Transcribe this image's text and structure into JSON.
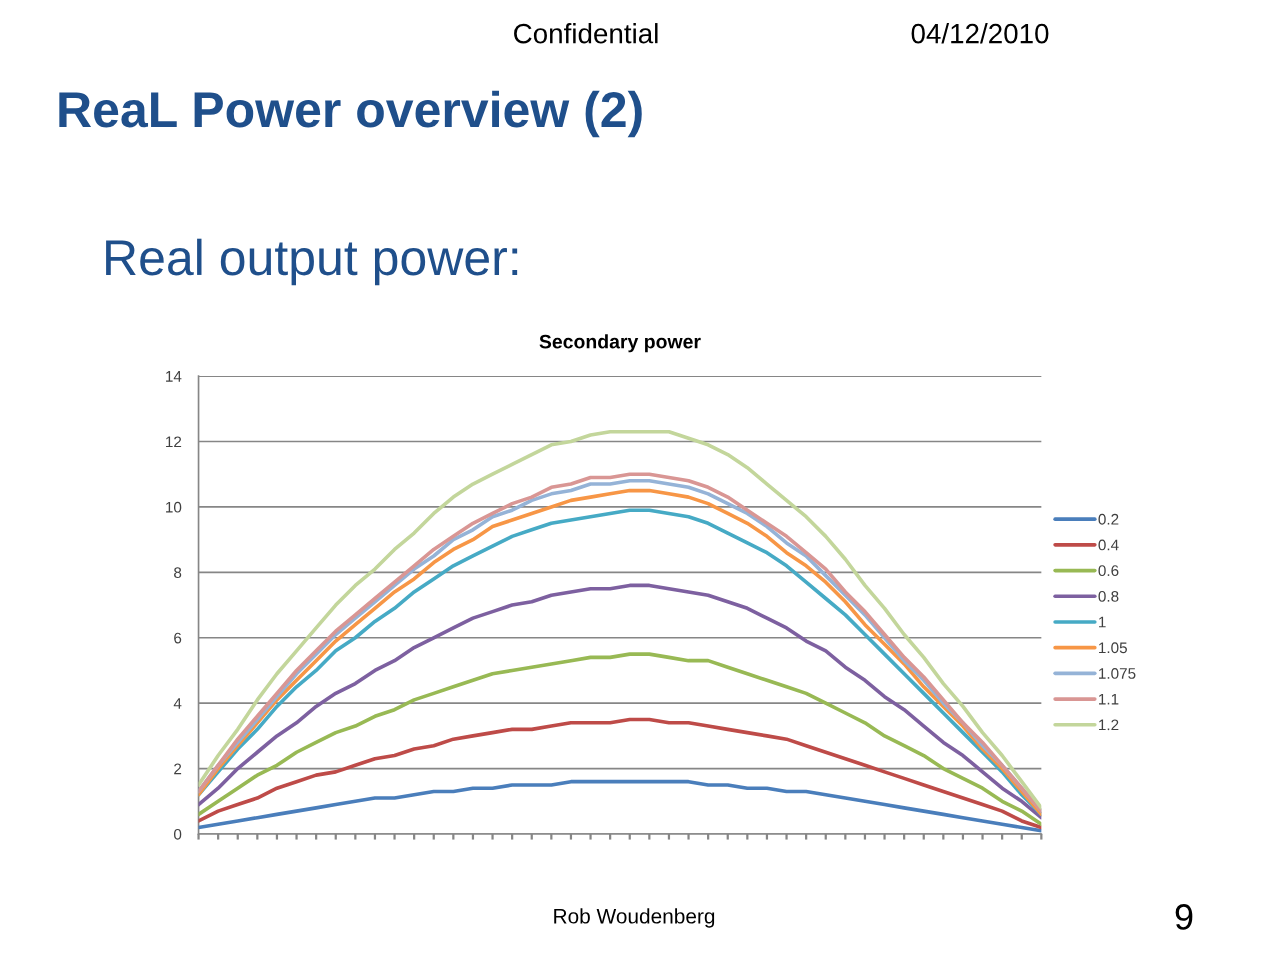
{
  "chart_data": {
    "type": "line",
    "title": "Secondary power",
    "annotations": [
      "Confidential",
      "04/12/2010",
      "ReaL Power overview (2)",
      "Real output power:",
      "Rob Woudenberg",
      "9"
    ],
    "categories": [
      null,
      null,
      null,
      null,
      null,
      null,
      null,
      null,
      null,
      null,
      null,
      null,
      null,
      null,
      null,
      null,
      null,
      null,
      null,
      null,
      null,
      null,
      null,
      null,
      null,
      null,
      null,
      null,
      null,
      null,
      null,
      null,
      null,
      null,
      null,
      null,
      null,
      null,
      null,
      null,
      null,
      null,
      null,
      null
    ],
    "series": [
      {
        "name": "0.2",
        "color": "#4a7ebb",
        "values": [
          0.2,
          0.3,
          0.4,
          0.5,
          0.6,
          0.7,
          0.8,
          0.9,
          1.0,
          1.1,
          1.1,
          1.2,
          1.3,
          1.3,
          1.4,
          1.4,
          1.5,
          1.5,
          1.5,
          1.6,
          1.6,
          1.6,
          1.6,
          1.6,
          1.6,
          1.6,
          1.5,
          1.5,
          1.4,
          1.4,
          1.3,
          1.3,
          1.2,
          1.1,
          1.0,
          0.9,
          0.8,
          0.7,
          0.6,
          0.5,
          0.4,
          0.3,
          0.2,
          0.1
        ]
      },
      {
        "name": "0.4",
        "color": "#be4b48",
        "values": [
          0.4,
          0.7,
          0.9,
          1.1,
          1.4,
          1.6,
          1.8,
          1.9,
          2.1,
          2.3,
          2.4,
          2.6,
          2.7,
          2.9,
          3.0,
          3.1,
          3.2,
          3.2,
          3.3,
          3.4,
          3.4,
          3.4,
          3.5,
          3.5,
          3.4,
          3.4,
          3.3,
          3.2,
          3.1,
          3.0,
          2.9,
          2.7,
          2.5,
          2.3,
          2.1,
          1.9,
          1.7,
          1.5,
          1.3,
          1.1,
          0.9,
          0.7,
          0.4,
          0.2
        ]
      },
      {
        "name": "0.6",
        "color": "#98b954",
        "values": [
          0.6,
          1.0,
          1.4,
          1.8,
          2.1,
          2.5,
          2.8,
          3.1,
          3.3,
          3.6,
          3.8,
          4.1,
          4.3,
          4.5,
          4.7,
          4.9,
          5.0,
          5.1,
          5.2,
          5.3,
          5.4,
          5.4,
          5.5,
          5.5,
          5.4,
          5.3,
          5.3,
          5.1,
          4.9,
          4.7,
          4.5,
          4.3,
          4.0,
          3.7,
          3.4,
          3.0,
          2.7,
          2.4,
          2.0,
          1.7,
          1.4,
          1.0,
          0.7,
          0.3
        ]
      },
      {
        "name": "0.8",
        "color": "#7d60a0",
        "values": [
          0.9,
          1.4,
          2.0,
          2.5,
          3.0,
          3.4,
          3.9,
          4.3,
          4.6,
          5.0,
          5.3,
          5.7,
          6.0,
          6.3,
          6.6,
          6.8,
          7.0,
          7.1,
          7.3,
          7.4,
          7.5,
          7.5,
          7.6,
          7.6,
          7.5,
          7.4,
          7.3,
          7.1,
          6.9,
          6.6,
          6.3,
          5.9,
          5.6,
          5.1,
          4.7,
          4.2,
          3.8,
          3.3,
          2.8,
          2.4,
          1.9,
          1.4,
          1.0,
          0.5
        ]
      },
      {
        "name": "1",
        "color": "#46aac5",
        "values": [
          1.2,
          1.9,
          2.6,
          3.2,
          3.9,
          4.5,
          5.0,
          5.6,
          6.0,
          6.5,
          6.9,
          7.4,
          7.8,
          8.2,
          8.5,
          8.8,
          9.1,
          9.3,
          9.5,
          9.6,
          9.7,
          9.8,
          9.9,
          9.9,
          9.8,
          9.7,
          9.5,
          9.2,
          8.9,
          8.6,
          8.2,
          7.7,
          7.2,
          6.7,
          6.1,
          5.5,
          4.9,
          4.3,
          3.7,
          3.1,
          2.5,
          1.9,
          1.2,
          0.6
        ]
      },
      {
        "name": "1.05",
        "color": "#f79646",
        "values": [
          1.2,
          2.0,
          2.7,
          3.4,
          4.1,
          4.7,
          5.3,
          5.9,
          6.4,
          6.9,
          7.4,
          7.8,
          8.3,
          8.7,
          9.0,
          9.4,
          9.6,
          9.8,
          10.0,
          10.2,
          10.3,
          10.4,
          10.5,
          10.5,
          10.4,
          10.3,
          10.1,
          9.8,
          9.5,
          9.1,
          8.6,
          8.2,
          7.7,
          7.1,
          6.4,
          5.8,
          5.2,
          4.5,
          3.9,
          3.3,
          2.6,
          2.0,
          1.3,
          0.6
        ]
      },
      {
        "name": "1.075",
        "color": "#95b3d7",
        "values": [
          1.3,
          2.1,
          2.8,
          3.5,
          4.2,
          4.9,
          5.5,
          6.1,
          6.6,
          7.1,
          7.6,
          8.1,
          8.5,
          9.0,
          9.3,
          9.7,
          9.9,
          10.2,
          10.4,
          10.5,
          10.7,
          10.7,
          10.8,
          10.8,
          10.7,
          10.6,
          10.4,
          10.1,
          9.8,
          9.4,
          8.9,
          8.5,
          7.9,
          7.3,
          6.7,
          6.0,
          5.3,
          4.7,
          4.0,
          3.4,
          2.7,
          2.1,
          1.4,
          0.7
        ]
      },
      {
        "name": "1.1",
        "color": "#d99694",
        "values": [
          1.3,
          2.1,
          2.9,
          3.6,
          4.3,
          5.0,
          5.6,
          6.2,
          6.7,
          7.2,
          7.7,
          8.2,
          8.7,
          9.1,
          9.5,
          9.8,
          10.1,
          10.3,
          10.6,
          10.7,
          10.9,
          10.9,
          11.0,
          11.0,
          10.9,
          10.8,
          10.6,
          10.3,
          9.9,
          9.5,
          9.1,
          8.6,
          8.1,
          7.4,
          6.8,
          6.1,
          5.4,
          4.8,
          4.1,
          3.4,
          2.8,
          2.1,
          1.4,
          0.7
        ]
      },
      {
        "name": "1.2",
        "color": "#c3d69b",
        "values": [
          1.5,
          2.4,
          3.2,
          4.1,
          4.9,
          5.6,
          6.3,
          7.0,
          7.6,
          8.1,
          8.7,
          9.2,
          9.8,
          10.3,
          10.7,
          11.0,
          11.3,
          11.6,
          11.9,
          12.0,
          12.2,
          12.3,
          12.3,
          12.3,
          12.3,
          12.1,
          11.9,
          11.6,
          11.2,
          10.7,
          10.2,
          9.7,
          9.1,
          8.4,
          7.6,
          6.9,
          6.1,
          5.4,
          4.6,
          3.9,
          3.1,
          2.4,
          1.6,
          0.8
        ]
      }
    ],
    "ylim": [
      0,
      14
    ],
    "yticks": [
      0,
      2,
      4,
      6,
      8,
      10,
      12,
      14
    ],
    "grid": "y",
    "legend": "right",
    "marker": "none",
    "line_style": "solid"
  }
}
